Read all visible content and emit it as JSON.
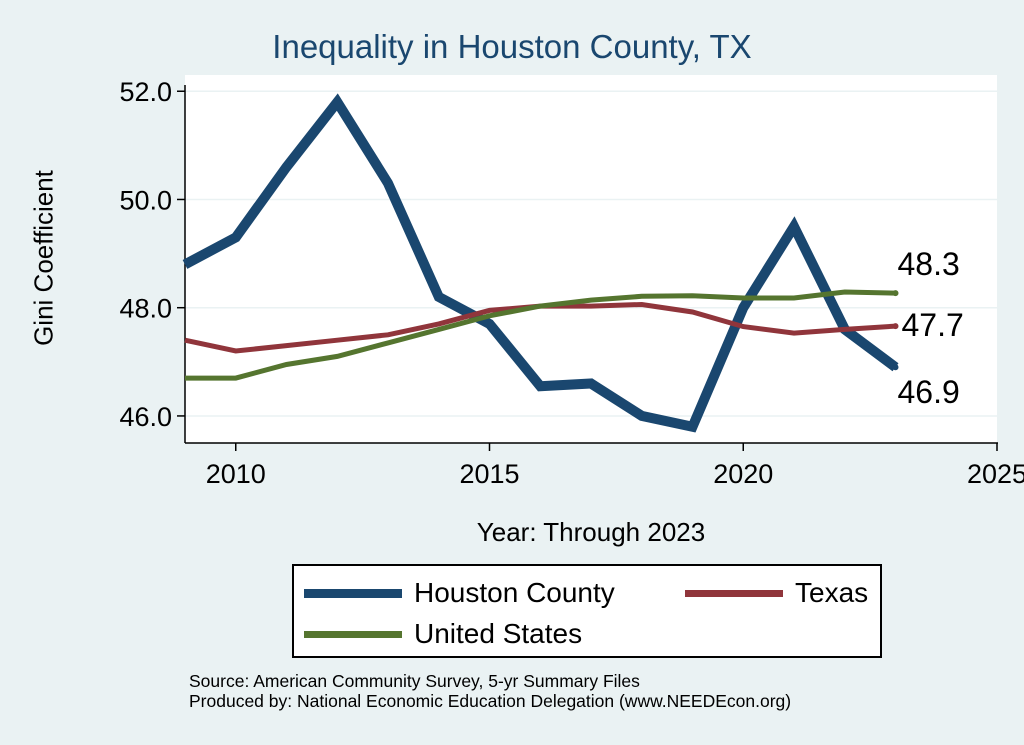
{
  "chart_data": {
    "type": "line",
    "title": "Inequality in Houston County, TX",
    "xlabel": "Year: Through 2023",
    "ylabel": "Gini Coefficient",
    "xlim": [
      2009,
      2025
    ],
    "ylim": [
      45.5,
      52.3
    ],
    "xticks": [
      2010,
      2015,
      2020,
      2025
    ],
    "yticks": [
      46.0,
      48.0,
      50.0,
      52.0
    ],
    "ytick_labels": [
      "46.0",
      "48.0",
      "50.0",
      "52.0"
    ],
    "grid": true,
    "x": [
      2009,
      2010,
      2011,
      2012,
      2013,
      2014,
      2015,
      2016,
      2017,
      2018,
      2019,
      2020,
      2021,
      2022,
      2023
    ],
    "series": [
      {
        "name": "Houston County",
        "color": "#1a476f",
        "values": [
          48.8,
          49.3,
          50.6,
          51.8,
          50.3,
          48.2,
          47.7,
          46.55,
          46.6,
          46.0,
          45.8,
          48.0,
          49.5,
          47.6,
          46.9
        ]
      },
      {
        "name": "Texas",
        "color": "#90353b",
        "values": [
          47.4,
          47.2,
          47.3,
          47.4,
          47.5,
          47.7,
          47.95,
          48.03,
          48.03,
          48.06,
          47.92,
          47.65,
          47.53,
          47.6,
          47.66
        ]
      },
      {
        "name": "United States",
        "color": "#55752f",
        "values": [
          46.7,
          46.7,
          46.95,
          47.1,
          47.35,
          47.6,
          47.85,
          48.03,
          48.14,
          48.21,
          48.22,
          48.18,
          48.18,
          48.29,
          48.27
        ]
      }
    ],
    "end_labels": [
      "46.9",
      "47.7",
      "48.3"
    ],
    "legend_position": "bottom"
  },
  "source_lines": [
    "Source: American Community Survey, 5-yr Summary Files",
    "Produced by: National Economic Education Delegation (www.NEEDEcon.org)"
  ]
}
